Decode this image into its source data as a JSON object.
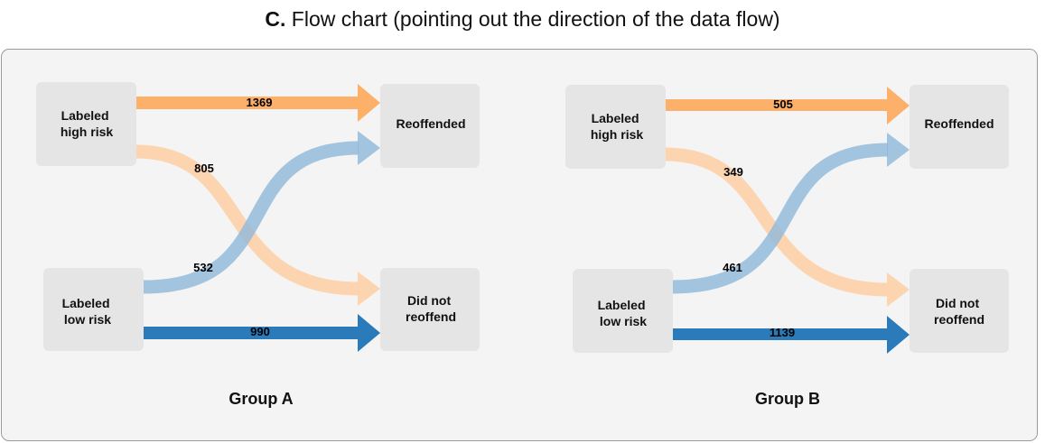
{
  "title": {
    "prefix": "C.",
    "text": "Flow chart (pointing out the direction of the data flow)"
  },
  "colors": {
    "high_to_reoffended": "#fdb06a",
    "high_to_not": "#fdd0a8",
    "low_to_reoffended": "#8fb8da",
    "low_to_not": "#2b7bba",
    "box": "#e5e5e5",
    "panel": "#f4f4f4"
  },
  "groups": [
    {
      "name": "Group A",
      "source_high": [
        "Labeled",
        "high risk"
      ],
      "source_low": [
        "Labeled",
        "low risk"
      ],
      "target_reoffended": [
        "Reoffended"
      ],
      "target_not": [
        "Did not",
        "reoffend"
      ],
      "flows": {
        "high_reoffended": "1369",
        "high_not": "805",
        "low_reoffended": "532",
        "low_not": "990"
      }
    },
    {
      "name": "Group B",
      "source_high": [
        "Labeled",
        "high risk"
      ],
      "source_low": [
        "Labeled",
        "low risk"
      ],
      "target_reoffended": [
        "Reoffended"
      ],
      "target_not": [
        "Did not",
        "reoffend"
      ],
      "flows": {
        "high_reoffended": "505",
        "high_not": "349",
        "low_reoffended": "461",
        "low_not": "1139"
      }
    }
  ]
}
